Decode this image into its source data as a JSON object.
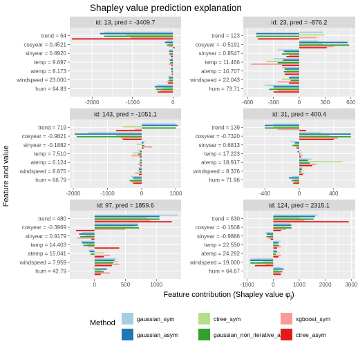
{
  "chart_data": {
    "type": "bar",
    "title": "Shapley value prediction explanation",
    "xlabel": "Feature contribution (Shapley value φ",
    "xlabel_sub": "j",
    "xlabel_close": ")",
    "ylabel": "Feature and value",
    "grid": true,
    "legend": {
      "title": "Method",
      "placement": "bottom",
      "entries": [
        {
          "name": "gaussian_sym",
          "color": "#a6cee3"
        },
        {
          "name": "gaussian_asym",
          "color": "#1f78b4"
        },
        {
          "name": "ctree_sym",
          "color": "#b2df8a"
        },
        {
          "name": "gaussian_non_iterative_asym",
          "color": "#33a02c"
        },
        {
          "name": "xgboost_sym",
          "color": "#fb9a99"
        },
        {
          "name": "ctree_asym",
          "color": "#e31a1c"
        }
      ]
    },
    "panels": [
      {
        "strip": "id: 13, pred = -3409.7",
        "xlim": [
          -2550,
          200
        ],
        "xticks": [
          -2000,
          -1000,
          0
        ],
        "xticklabels": [
          "-2000",
          "-1000",
          "0"
        ],
        "features": [
          "trend = 64",
          "cosyear = 0.4521",
          "sinyear = 0.8920",
          "temp = 9.697",
          "atemp = 8.173",
          "windspeed = 23.000",
          "hum = 94.83"
        ],
        "values": [
          [
            -1700,
            -1800,
            -1150,
            -1700,
            -1050,
            -2500
          ],
          [
            -150,
            -200,
            -100,
            -150,
            -100,
            40
          ],
          [
            -80,
            -100,
            -60,
            -90,
            -70,
            -50
          ],
          [
            -60,
            -80,
            -50,
            -70,
            -100,
            -40
          ],
          [
            -40,
            -50,
            -30,
            -40,
            -20,
            -30
          ],
          [
            -120,
            -100,
            -90,
            -110,
            -150,
            -120
          ],
          [
            -400,
            -450,
            -250,
            -420,
            -300,
            -380
          ]
        ]
      },
      {
        "strip": "id: 23, pred = -876.2",
        "xlim": [
          -650,
          650
        ],
        "xticks": [
          -600,
          -300,
          0,
          300,
          600
        ],
        "xticklabels": [
          "-600",
          "-300",
          "0",
          "300",
          "600"
        ],
        "features": [
          "trend = 123",
          "cosyear = -0.5191",
          "sinyear = 0.8547",
          "temp = 11.466",
          "atemp = 10.707",
          "windspeed = 22.043",
          "hum = 73.71"
        ],
        "values": [
          [
            270,
            -500,
            290,
            -500,
            200,
            -480
          ],
          [
            220,
            560,
            270,
            580,
            400,
            320
          ],
          [
            -250,
            -180,
            -160,
            -200,
            -120,
            -150
          ],
          [
            -300,
            -190,
            -380,
            -250,
            -560,
            -200
          ],
          [
            -200,
            -170,
            -150,
            -180,
            -160,
            -170
          ],
          [
            -100,
            -120,
            -200,
            -100,
            -250,
            -120
          ],
          [
            -400,
            -300,
            -300,
            -350,
            -250,
            -300
          ]
        ]
      },
      {
        "strip": "id: 143, pred = -1051.1",
        "xlim": [
          -2100,
          1150
        ],
        "xticks": [
          -2000,
          -1000,
          0,
          1000
        ],
        "xticklabels": [
          "-2000",
          "-1000",
          "0",
          "1000"
        ],
        "features": [
          "trend = 719",
          "cosyear = -0.9821",
          "sinyear = -0.1882",
          "temp = 7.510",
          "atemp = 6.124",
          "windspeed = 8.875",
          "hum = 66.79"
        ],
        "values": [
          [
            1000,
            1050,
            -550,
            1000,
            -200,
            -750
          ],
          [
            -1550,
            -1950,
            -750,
            -1900,
            -600,
            -550
          ],
          [
            100,
            50,
            -150,
            80,
            300,
            50
          ],
          [
            -120,
            -50,
            -250,
            -100,
            -300,
            -60
          ],
          [
            -60,
            -40,
            -80,
            -50,
            -100,
            -40
          ],
          [
            -100,
            -80,
            -120,
            -60,
            -200,
            -80
          ],
          [
            -300,
            -250,
            -200,
            -350,
            -300,
            -250
          ]
        ]
      },
      {
        "strip": "id: 31, pred =  400.4",
        "xlim": [
          -650,
          650
        ],
        "xticks": [
          -400,
          0,
          400
        ],
        "xticklabels": [
          "-400",
          "0",
          "400"
        ],
        "features": [
          "trend = 139",
          "cosyear = -0.7320",
          "sinyear = 0.6813",
          "temp = 17.223",
          "atemp = 18.917",
          "windspeed = 8.376",
          "hum = 71.96"
        ],
        "values": [
          [
            -300,
            -400,
            -300,
            -400,
            -250,
            80
          ],
          [
            250,
            600,
            350,
            600,
            450,
            400
          ],
          [
            -100,
            -50,
            -60,
            -80,
            -40,
            -30
          ],
          [
            20,
            -20,
            30,
            10,
            40,
            20
          ],
          [
            140,
            100,
            500,
            120,
            200,
            150
          ],
          [
            40,
            30,
            50,
            20,
            60,
            40
          ],
          [
            -80,
            -120,
            -60,
            -90,
            -50,
            -70
          ]
        ]
      },
      {
        "strip": "id: 97, pred =  1859.6",
        "xlim": [
          -400,
          1400
        ],
        "xticks": [
          0,
          500,
          1000
        ],
        "xticklabels": [
          "0",
          "500",
          "1000"
        ],
        "features": [
          "trend = 480",
          "cosyear = -0.3969",
          "sinyear = 0.9179",
          "temp = 14.403",
          "atemp = 15.041",
          "windspeed = 7.959",
          "hum = 42.79"
        ],
        "values": [
          [
            1350,
            1050,
            850,
            1050,
            900,
            1250
          ],
          [
            700,
            700,
            650,
            720,
            500,
            -300
          ],
          [
            -200,
            -250,
            -150,
            -230,
            -280,
            -50
          ],
          [
            -220,
            -200,
            -120,
            -180,
            -100,
            400
          ],
          [
            -100,
            -80,
            150,
            -60,
            250,
            150
          ],
          [
            350,
            320,
            380,
            300,
            400,
            280
          ],
          [
            -20,
            200,
            100,
            150,
            250,
            100
          ]
        ]
      },
      {
        "strip": "id: 124, pred =  2315.1",
        "xlim": [
          -1150,
          3150
        ],
        "xticks": [
          -1000,
          0,
          1000,
          2000,
          3000
        ],
        "xticklabels": [
          "-1000",
          "0",
          "1000",
          "2000",
          "3000"
        ],
        "features": [
          "trend = 630",
          "cosyear = -0.1508",
          "sinyear = -0.9886",
          "temp = 22.550",
          "atemp = 24.292",
          "windspeed = 19.000",
          "hum = 64.67"
        ],
        "values": [
          [
            1700,
            1600,
            1000,
            1550,
            1200,
            2900
          ],
          [
            650,
            700,
            650,
            700,
            500,
            300
          ],
          [
            -300,
            -250,
            -150,
            -260,
            -200,
            -100
          ],
          [
            280,
            200,
            100,
            220,
            300,
            150
          ],
          [
            100,
            150,
            250,
            100,
            300,
            200
          ],
          [
            -850,
            -900,
            -400,
            -880,
            -300,
            -700
          ],
          [
            300,
            400,
            200,
            350,
            250,
            300
          ]
        ]
      }
    ]
  }
}
